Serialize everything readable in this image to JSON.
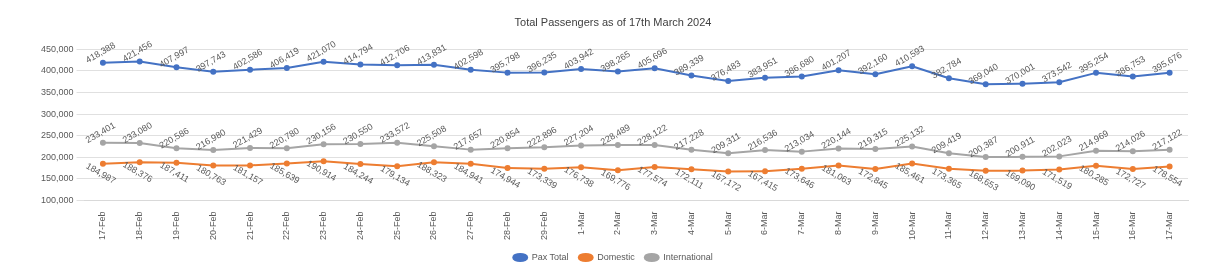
{
  "chart_data": {
    "type": "line",
    "title": "Total Passengers as of 17th March 2024",
    "categories": [
      "17-Feb",
      "18-Feb",
      "19-Feb",
      "20-Feb",
      "21-Feb",
      "22-Feb",
      "23-Feb",
      "24-Feb",
      "25-Feb",
      "26-Feb",
      "27-Feb",
      "28-Feb",
      "29-Feb",
      "1-Mar",
      "2-Mar",
      "3-Mar",
      "4-Mar",
      "5-Mar",
      "6-Mar",
      "7-Mar",
      "8-Mar",
      "9-Mar",
      "10-Mar",
      "11-Mar",
      "12-Mar",
      "13-Mar",
      "14-Mar",
      "15-Mar",
      "16-Mar",
      "17-Mar"
    ],
    "series": [
      {
        "name": "Pax Total",
        "color": "#4472c4",
        "values": [
          418388,
          421456,
          407997,
          397743,
          402586,
          406419,
          421070,
          414794,
          412706,
          413831,
          402598,
          395798,
          396235,
          403942,
          398265,
          405696,
          389339,
          376483,
          383951,
          386680,
          401207,
          392160,
          410593,
          382784,
          369040,
          370001,
          373542,
          395254,
          386753,
          395676
        ],
        "value_labels": [
          "418,388",
          "421,456",
          "407,997",
          "397,743",
          "402,586",
          "406,419",
          "421,070",
          "414,794",
          "412,706",
          "413,831",
          "402,598",
          "395,798",
          "396,235",
          "403,942",
          "398,265",
          "405,696",
          "389,339",
          "376,483",
          "383,951",
          "386,680",
          "401,207",
          "392,160",
          "410,593",
          "382,784",
          "369,040",
          "370,001",
          "373,542",
          "395,254",
          "386,753",
          "395,676"
        ]
      },
      {
        "name": "Domestic",
        "color": "#ed7d31",
        "values": [
          184987,
          188376,
          187411,
          180763,
          181157,
          185639,
          190914,
          184244,
          179134,
          188323,
          184941,
          174944,
          173339,
          176738,
          169776,
          177574,
          172111,
          167172,
          167415,
          173646,
          181063,
          172845,
          185461,
          173365,
          168653,
          169090,
          171519,
          180285,
          172727,
          178554
        ],
        "value_labels": [
          "184,987",
          "188,376",
          "187,411",
          "180,763",
          "181,157",
          "185,639",
          "190,914",
          "184,244",
          "179,134",
          "188,323",
          "184,941",
          "174,944",
          "173,339",
          "176,738",
          "169,776",
          "177,574",
          "172,111",
          "167,172",
          "167,415",
          "173,646",
          "181,063",
          "172,845",
          "185,461",
          "173,365",
          "168,653",
          "169,090",
          "171,519",
          "180,285",
          "172,727",
          "178,554"
        ]
      },
      {
        "name": "International",
        "color": "#a5a5a5",
        "values": [
          233401,
          233080,
          220586,
          216980,
          221429,
          220780,
          230156,
          230550,
          233572,
          225508,
          217657,
          220854,
          222896,
          227204,
          228489,
          228122,
          217228,
          209311,
          216536,
          213034,
          220144,
          219315,
          225132,
          209419,
          200387,
          200911,
          202023,
          214969,
          214026,
          217122
        ],
        "value_labels": [
          "233,401",
          "233,080",
          "220,586",
          "216,980",
          "221,429",
          "220,780",
          "230,156",
          "230,550",
          "233,572",
          "225,508",
          "217,657",
          "220,854",
          "222,896",
          "227,204",
          "228,489",
          "228,122",
          "217,228",
          "209,311",
          "216,536",
          "213,034",
          "220,144",
          "219,315",
          "225,132",
          "209,419",
          "200,387",
          "200,911",
          "202,023",
          "214,969",
          "214,026",
          "217,122"
        ]
      }
    ],
    "ylim": [
      100000,
      450000
    ],
    "yticks": [
      {
        "value": 100000,
        "label": "100,000"
      },
      {
        "value": 150000,
        "label": "150,000"
      },
      {
        "value": 200000,
        "label": "200,000"
      },
      {
        "value": 250000,
        "label": "250,000"
      },
      {
        "value": 300000,
        "label": "300,000"
      },
      {
        "value": 350000,
        "label": "350,000"
      },
      {
        "value": 400000,
        "label": "400,000"
      },
      {
        "value": 450000,
        "label": "450,000"
      }
    ],
    "grid": "y",
    "legend": "bottom",
    "marker": "circle",
    "line_style": "solid"
  }
}
